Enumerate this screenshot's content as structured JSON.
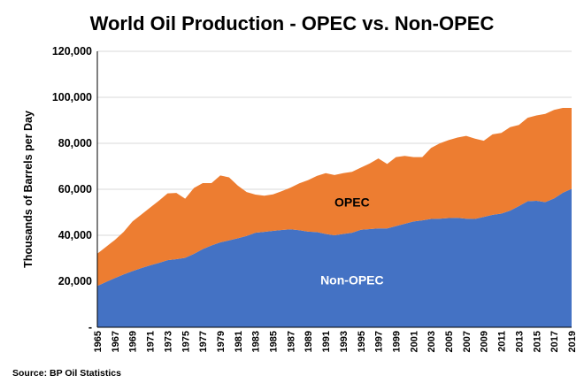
{
  "chart_data": {
    "type": "area",
    "stacked": true,
    "title": "World Oil Production - OPEC vs. Non-OPEC",
    "xlabel": "",
    "ylabel": "Thousands of Barrels per Day",
    "ylim": [
      0,
      120000
    ],
    "yticks": [
      0,
      20000,
      40000,
      60000,
      80000,
      100000,
      120000
    ],
    "ytick_labels": [
      "-",
      "20,000",
      "40,000",
      "60,000",
      "80,000",
      "100,000",
      "120,000"
    ],
    "grid": true,
    "x_start": 1965,
    "x_end": 2019,
    "xtick_labels": [
      "1965",
      "1967",
      "1969",
      "1971",
      "1973",
      "1975",
      "1977",
      "1979",
      "1981",
      "1983",
      "1985",
      "1987",
      "1989",
      "1991",
      "1993",
      "1995",
      "1997",
      "1999",
      "2001",
      "2003",
      "2005",
      "2007",
      "2009",
      "2011",
      "2013",
      "2015",
      "2017",
      "2019"
    ],
    "series": [
      {
        "name": "Non-OPEC",
        "color": "#4472c4",
        "label_color": "#ffffff",
        "values": [
          18000,
          19700,
          21400,
          23000,
          24400,
          25700,
          26900,
          28000,
          29200,
          29600,
          30200,
          31900,
          34000,
          35600,
          36900,
          37800,
          38700,
          39700,
          41100,
          41500,
          41900,
          42300,
          42600,
          42200,
          41600,
          41400,
          40600,
          40000,
          40600,
          41100,
          42400,
          42700,
          43000,
          43000,
          44000,
          45000,
          46000,
          46500,
          47100,
          47200,
          47500,
          47600,
          47200,
          47100,
          48000,
          48900,
          49400,
          50700,
          52700,
          54800,
          55000,
          54400,
          56000,
          58500,
          60200
        ]
      },
      {
        "name": "OPEC",
        "color": "#ed7d31",
        "label_color": "#000000",
        "values": [
          14000,
          15300,
          16600,
          18500,
          21600,
          23300,
          25100,
          27000,
          29000,
          28800,
          25700,
          28700,
          28700,
          27100,
          29100,
          27400,
          22900,
          19100,
          16600,
          15700,
          15900,
          16900,
          18100,
          20400,
          22400,
          24400,
          26400,
          26200,
          26400,
          26500,
          27000,
          28500,
          30400,
          28000,
          30000,
          29500,
          28000,
          27500,
          30900,
          32800,
          33900,
          34900,
          36000,
          34900,
          33100,
          35000,
          35100,
          36300,
          35300,
          36300,
          37100,
          38400,
          38500,
          36900,
          35200
        ]
      }
    ],
    "annotations": [
      {
        "text": "OPEC",
        "series": "OPEC"
      },
      {
        "text": "Non-OPEC",
        "series": "Non-OPEC"
      }
    ],
    "source": "Source:  BP Oil Statistics"
  }
}
